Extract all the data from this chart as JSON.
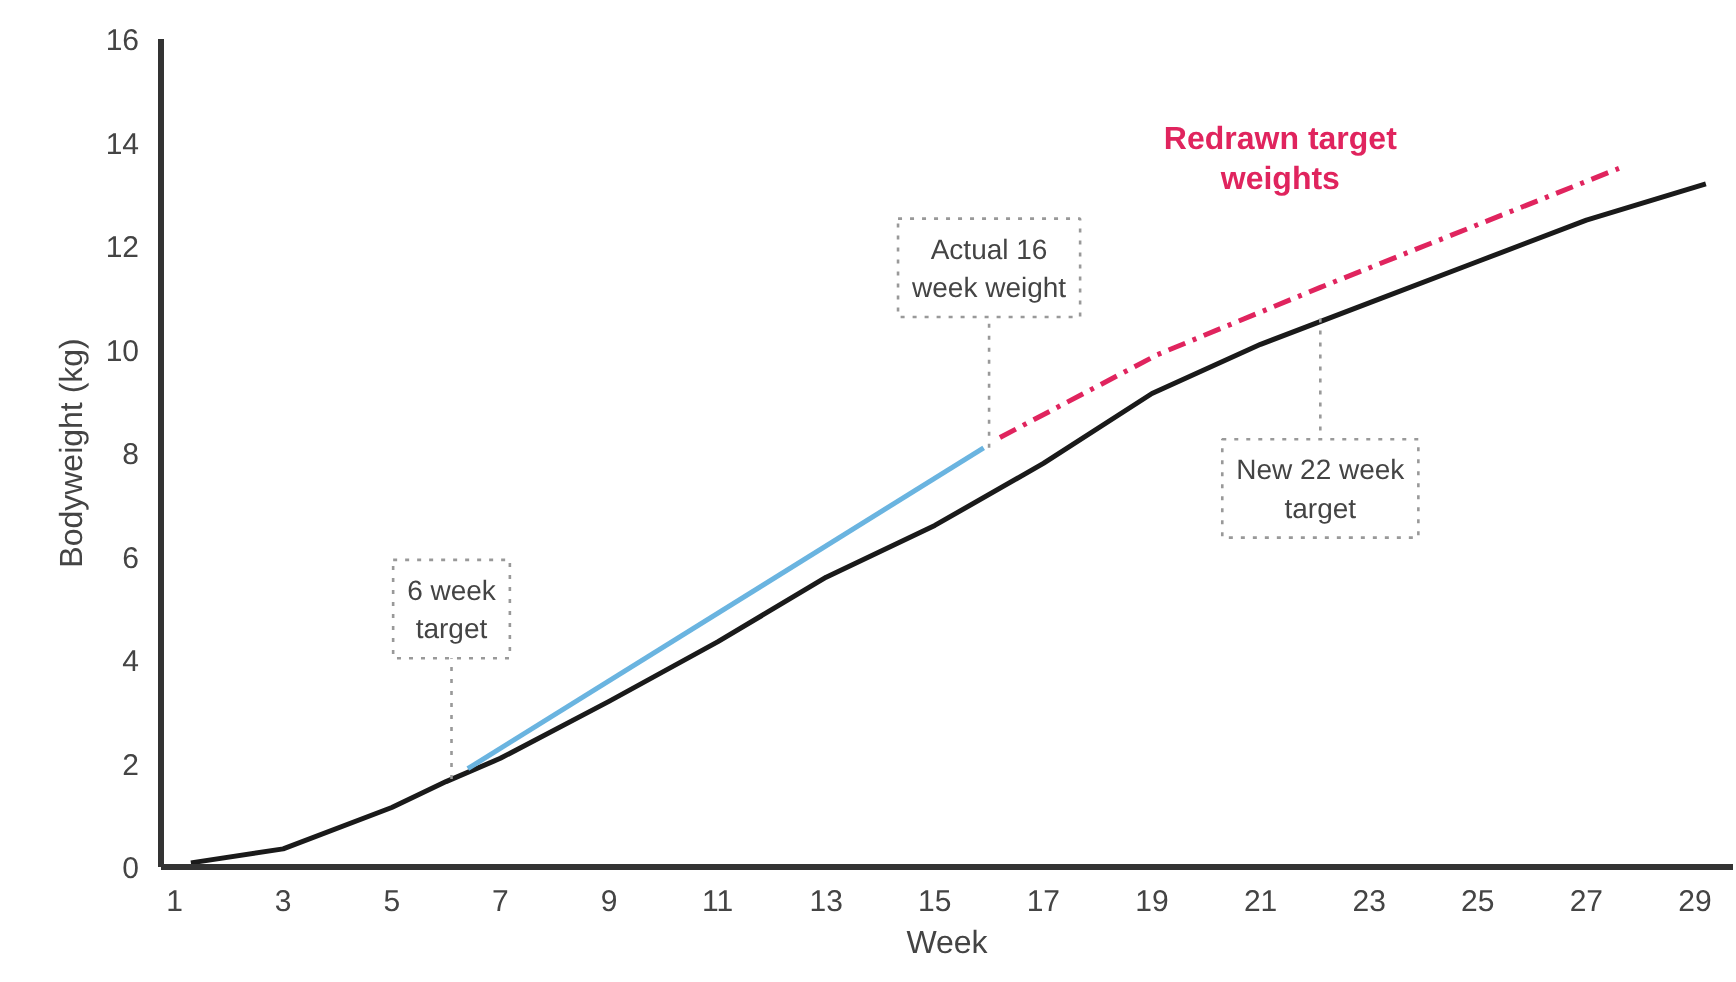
{
  "chart_data": {
    "type": "line",
    "xlabel": "Week",
    "ylabel": "Bodyweight (kg)",
    "xlim": [
      0.75,
      29.7
    ],
    "ylim": [
      0,
      16
    ],
    "xticks": [
      1,
      3,
      5,
      7,
      9,
      11,
      13,
      15,
      17,
      19,
      21,
      23,
      25,
      27,
      29
    ],
    "yticks": [
      0,
      2,
      4,
      6,
      8,
      10,
      12,
      14,
      16
    ],
    "grid": false,
    "legend": false,
    "series": [
      {
        "color": "#1a1a1a",
        "x": [
          1.3,
          3,
          5,
          6,
          7,
          9,
          11,
          13,
          15,
          17,
          19,
          21,
          23,
          25,
          27,
          29.2
        ],
        "values": [
          0.08,
          0.35,
          1.15,
          1.65,
          2.1,
          3.2,
          4.35,
          5.6,
          6.6,
          7.8,
          9.15,
          10.1,
          10.9,
          11.7,
          12.5,
          13.2
        ]
      },
      {
        "color": "#6ab4e0",
        "x": [
          6.4,
          15.9
        ],
        "values": [
          1.9,
          8.1
        ]
      },
      {
        "name": "Redrawn target weights",
        "color": "#e0245e",
        "line_style": "dashdot",
        "x": [
          16.2,
          19.1,
          22.1,
          27.6
        ],
        "values": [
          8.3,
          9.9,
          11.2,
          13.5
        ]
      }
    ],
    "annotations": [
      {
        "text": "6 week target",
        "x": 6.1,
        "y": 1.7
      },
      {
        "text": "Actual 16 week weight",
        "x": 16,
        "y": 8.1
      },
      {
        "text": "New 22 week target",
        "x": 22.1,
        "y": 10.6
      }
    ]
  }
}
